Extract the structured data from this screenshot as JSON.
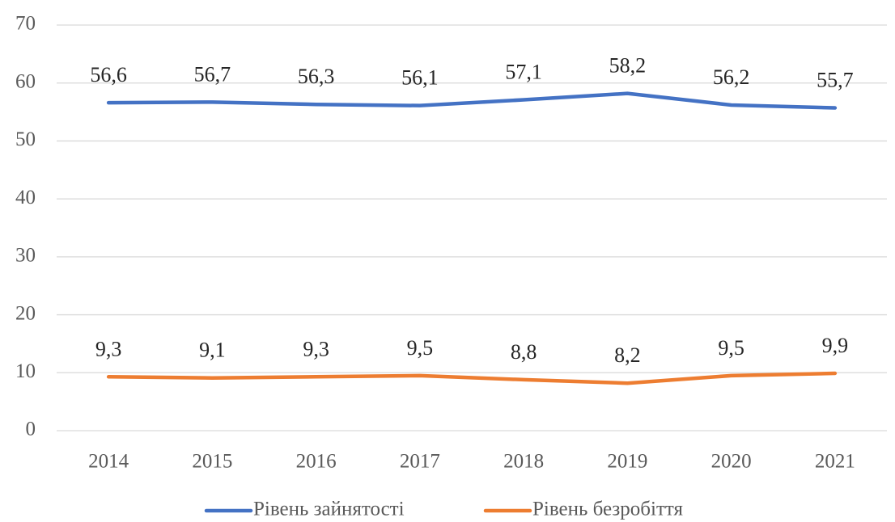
{
  "chart_data": {
    "type": "line",
    "categories": [
      "2014",
      "2015",
      "2016",
      "2017",
      "2018",
      "2019",
      "2020",
      "2021"
    ],
    "series": [
      {
        "name": "Рівень зайнятості",
        "color": "#4472c4",
        "values": [
          56.6,
          56.7,
          56.3,
          56.1,
          57.1,
          58.2,
          56.2,
          55.7
        ],
        "value_labels": [
          "56,6",
          "56,7",
          "56,3",
          "56,1",
          "57,1",
          "58,2",
          "56,2",
          "55,7"
        ]
      },
      {
        "name": "Рівень безробіття",
        "color": "#ed7d31",
        "values": [
          9.3,
          9.1,
          9.3,
          9.5,
          8.8,
          8.2,
          9.5,
          9.9
        ],
        "value_labels": [
          "9,3",
          "9,1",
          "9,3",
          "9,5",
          "8,8",
          "8,2",
          "9,5",
          "9,9"
        ]
      }
    ],
    "ylim": [
      0,
      70
    ],
    "yticks": [
      0,
      10,
      20,
      30,
      40,
      50,
      60,
      70
    ],
    "grid": true,
    "legend": "bottom"
  }
}
